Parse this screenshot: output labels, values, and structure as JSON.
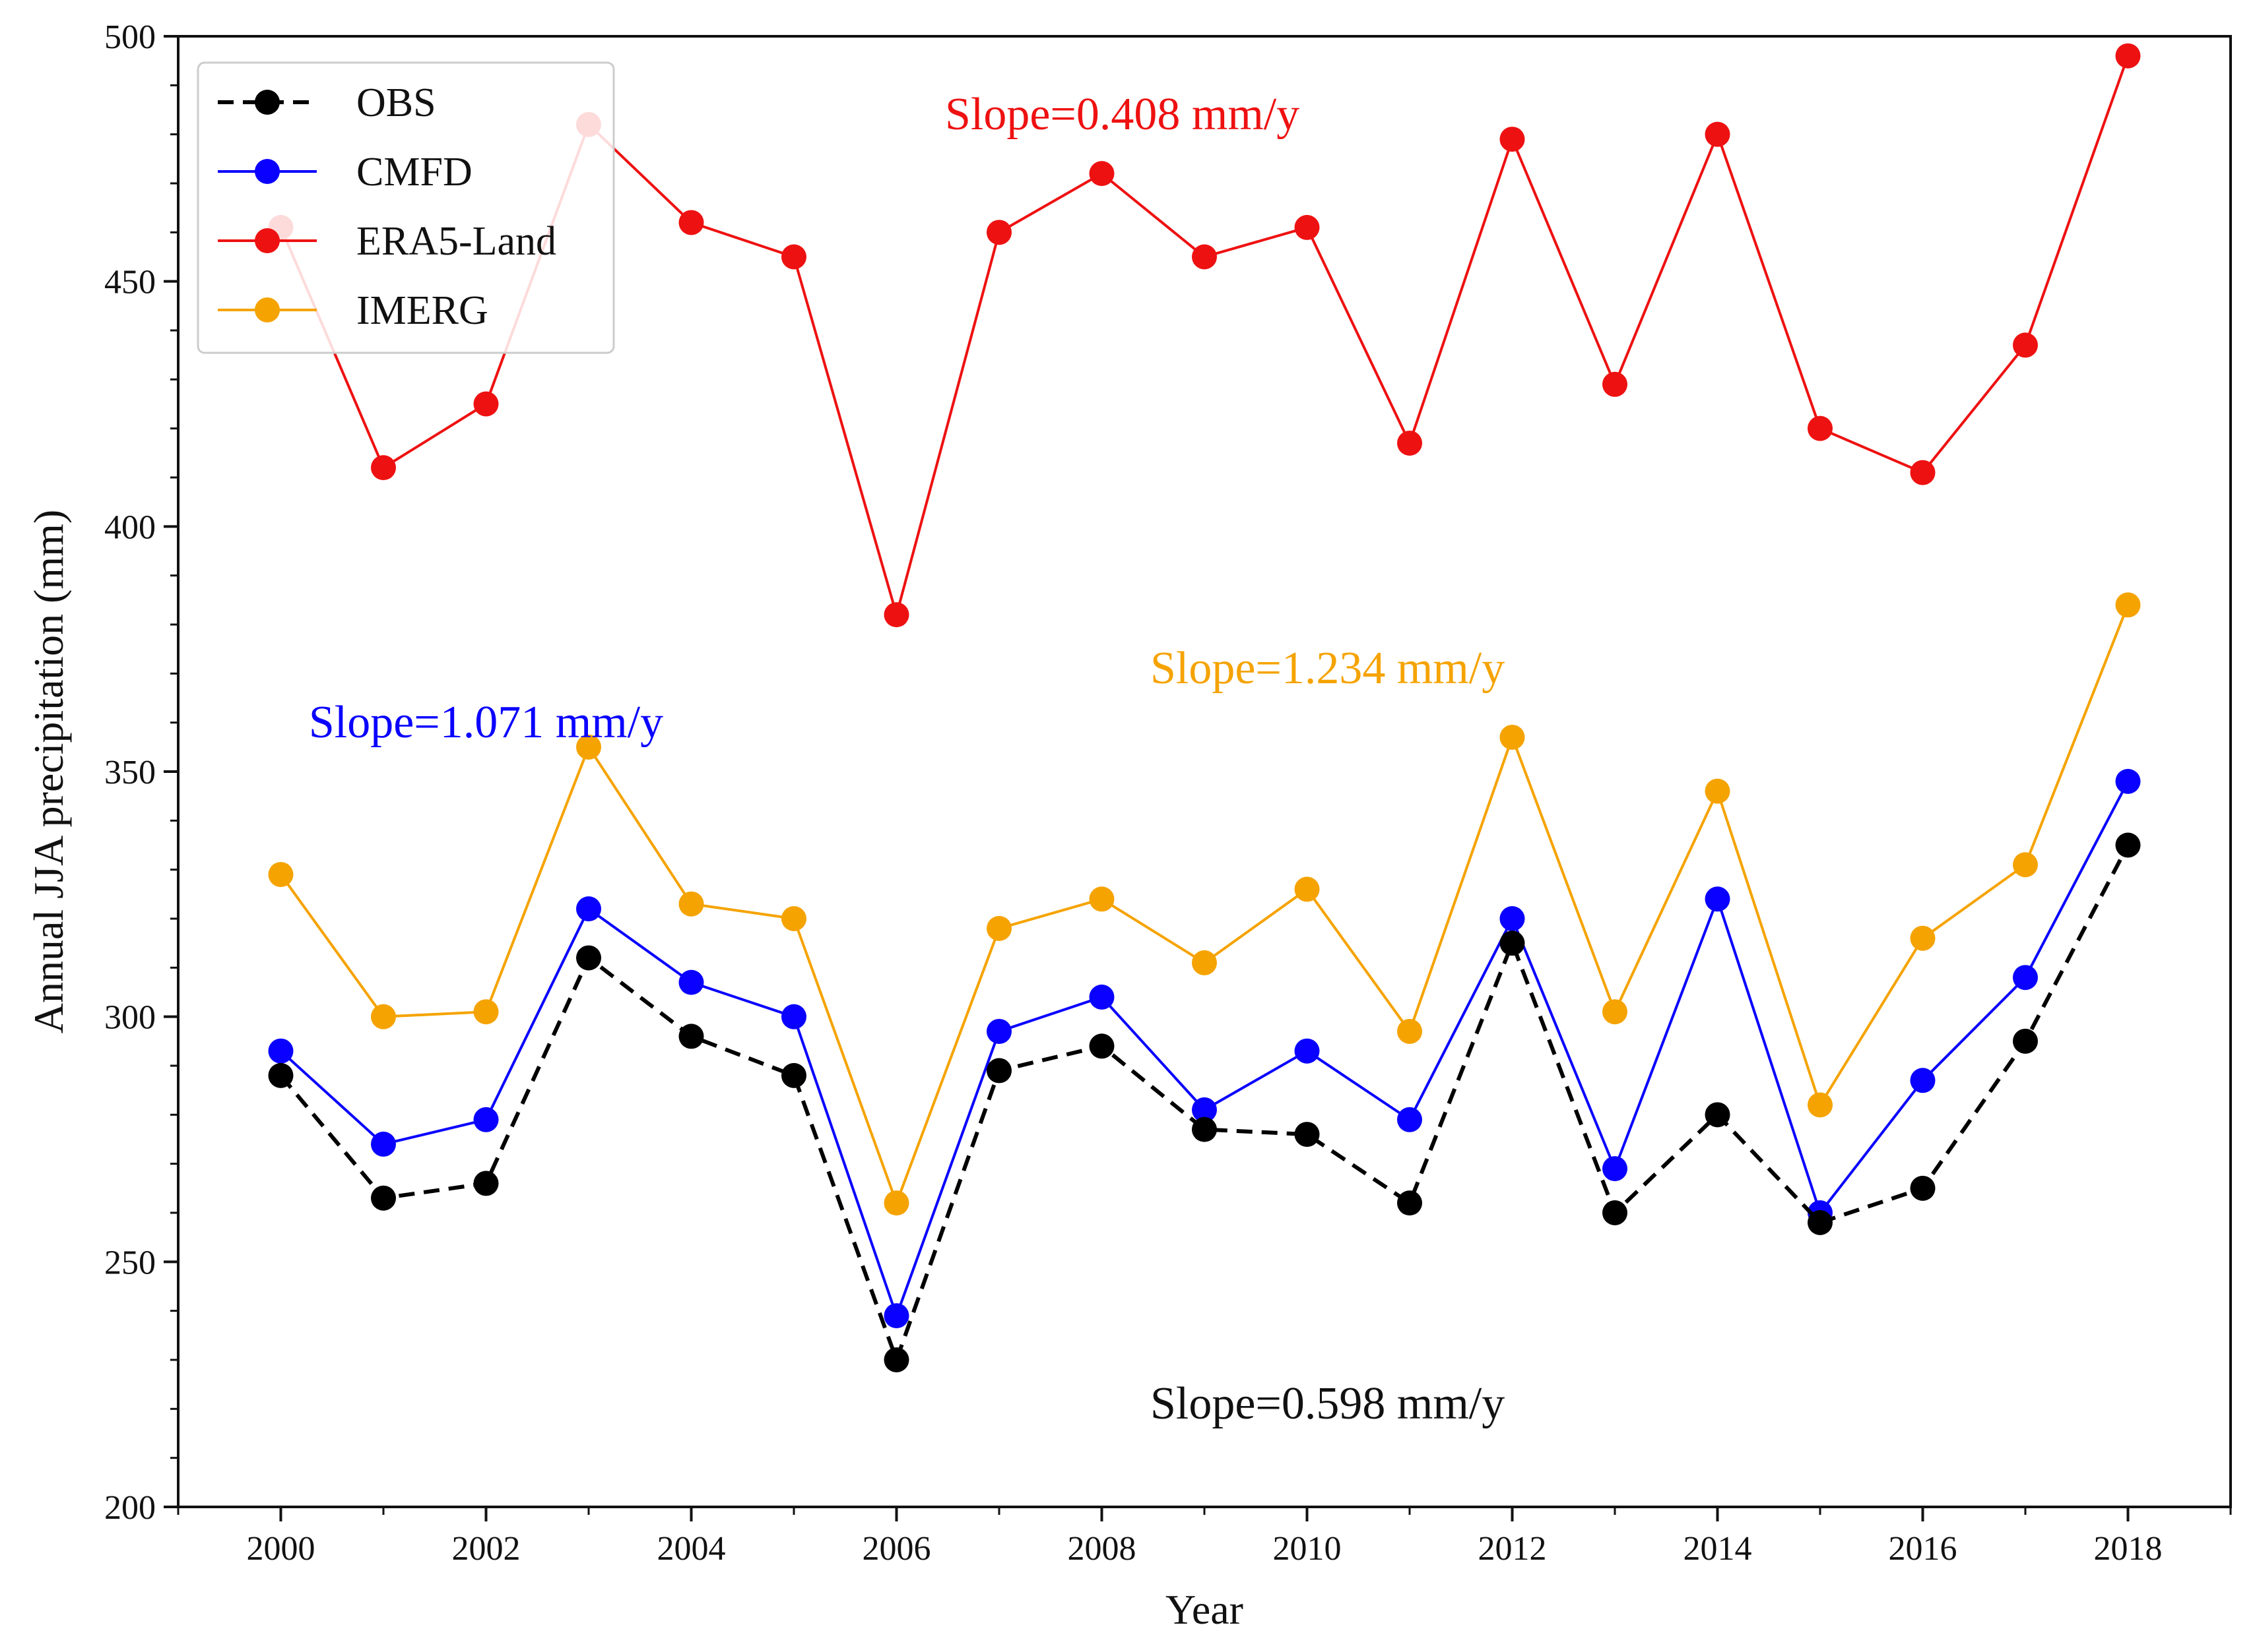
{
  "chart_data": {
    "type": "line",
    "title": "",
    "xlabel": "Year",
    "ylabel": "Annual JJA precipitation (mm)",
    "xlim": [
      1999,
      2019
    ],
    "ylim": [
      200,
      500
    ],
    "x": [
      2000,
      2001,
      2002,
      2003,
      2004,
      2005,
      2006,
      2007,
      2008,
      2009,
      2010,
      2011,
      2012,
      2013,
      2014,
      2015,
      2016,
      2017,
      2018
    ],
    "xticks": [
      "2000",
      "2002",
      "2004",
      "2006",
      "2008",
      "2010",
      "2012",
      "2014",
      "2016",
      "2018"
    ],
    "yticks": [
      "200",
      "250",
      "300",
      "350",
      "400",
      "450",
      "500"
    ],
    "legend_position": "top-left",
    "series": [
      {
        "name": "OBS",
        "color": "#000000",
        "style": "dashed",
        "values": [
          288,
          263,
          266,
          312,
          296,
          288,
          230,
          289,
          294,
          277,
          276,
          262,
          315,
          260,
          280,
          258,
          265,
          295,
          335
        ]
      },
      {
        "name": "CMFD",
        "color": "#0a00ff",
        "style": "solid",
        "values": [
          293,
          274,
          279,
          322,
          307,
          300,
          239,
          297,
          304,
          281,
          293,
          279,
          320,
          269,
          324,
          260,
          287,
          308,
          348
        ]
      },
      {
        "name": "ERA5-Land",
        "color": "#ee1111",
        "style": "solid",
        "values": [
          461,
          412,
          425,
          482,
          462,
          455,
          382,
          460,
          472,
          455,
          461,
          417,
          479,
          429,
          480,
          420,
          411,
          437,
          496
        ]
      },
      {
        "name": "IMERG",
        "color": "#f5a300",
        "style": "solid",
        "values": [
          329,
          300,
          301,
          355,
          323,
          320,
          262,
          318,
          324,
          311,
          326,
          297,
          357,
          301,
          346,
          282,
          316,
          331,
          384
        ]
      }
    ],
    "annotations": [
      {
        "text": "Slope=0.408 mm/y",
        "color": "#ee1111",
        "x": 2008.2,
        "y": 481
      },
      {
        "text": "Slope=1.234 mm/y",
        "color": "#f5a300",
        "x": 2010.2,
        "y": 368
      },
      {
        "text": "Slope=1.071 mm/y",
        "color": "#0a00ff",
        "x": 2002.0,
        "y": 357
      },
      {
        "text": "Slope=0.598 mm/y",
        "color": "#111111",
        "x": 2010.2,
        "y": 218
      }
    ]
  }
}
